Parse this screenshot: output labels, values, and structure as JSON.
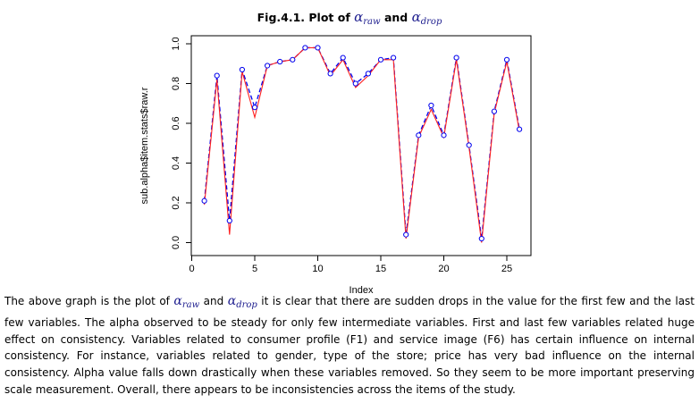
{
  "figure": {
    "title_prefix": "Fig.4.1. Plot of",
    "title_and": "and",
    "alpha_symbol": "α",
    "sub_raw": "raw",
    "sub_drop": "drop"
  },
  "paragraph": {
    "part1": "The above graph is the plot of",
    "part2": "and",
    "part3": "it is clear that there are sudden drops in the value for the first few and the last few variables. The alpha observed to be steady for only few intermediate variables. First and last few variables related huge effect on consistency. Variables related to consumer profile (F1) and service image (F6) has certain influence on internal consistency. For instance, variables related to gender, type of the store; price has very bad influence on the internal consistency. Alpha value falls down drastically when these variables removed. So they seem to be more important preserving scale measurement. Overall, there appears to be inconsistencies across the items of the study."
  },
  "colors": {
    "raw": "#0000ee",
    "drop": "#ff2020",
    "axis": "#000000"
  },
  "chart_data": {
    "type": "line",
    "title": "Fig.4.1. Plot of α_raw and α_drop",
    "xlabel": "Index",
    "ylabel": "sub.alpha$item.stats$raw.r",
    "xlim": [
      0,
      26
    ],
    "ylim": [
      0,
      1.0
    ],
    "xticks": [
      0,
      5,
      10,
      15,
      20,
      25
    ],
    "yticks": [
      0.0,
      0.2,
      0.4,
      0.6,
      0.8,
      1.0
    ],
    "x": [
      1,
      2,
      3,
      4,
      5,
      6,
      7,
      8,
      9,
      10,
      11,
      12,
      13,
      14,
      15,
      16,
      17,
      18,
      19,
      20,
      21,
      22,
      23,
      24,
      25,
      26
    ],
    "series": [
      {
        "name": "raw",
        "style": "points+dashed line",
        "values": [
          0.21,
          0.84,
          0.11,
          0.87,
          0.68,
          0.89,
          0.91,
          0.92,
          0.98,
          0.98,
          0.85,
          0.93,
          0.8,
          0.85,
          0.92,
          0.93,
          0.04,
          0.54,
          0.69,
          0.54,
          0.93,
          0.49,
          0.02,
          0.66,
          0.92,
          0.57
        ]
      },
      {
        "name": "drop",
        "style": "solid line",
        "values": [
          0.19,
          0.82,
          0.04,
          0.86,
          0.63,
          0.89,
          0.91,
          0.92,
          0.98,
          0.98,
          0.84,
          0.92,
          0.78,
          0.84,
          0.92,
          0.92,
          0.02,
          0.53,
          0.67,
          0.53,
          0.92,
          0.48,
          0.0,
          0.65,
          0.91,
          0.56
        ]
      }
    ]
  }
}
